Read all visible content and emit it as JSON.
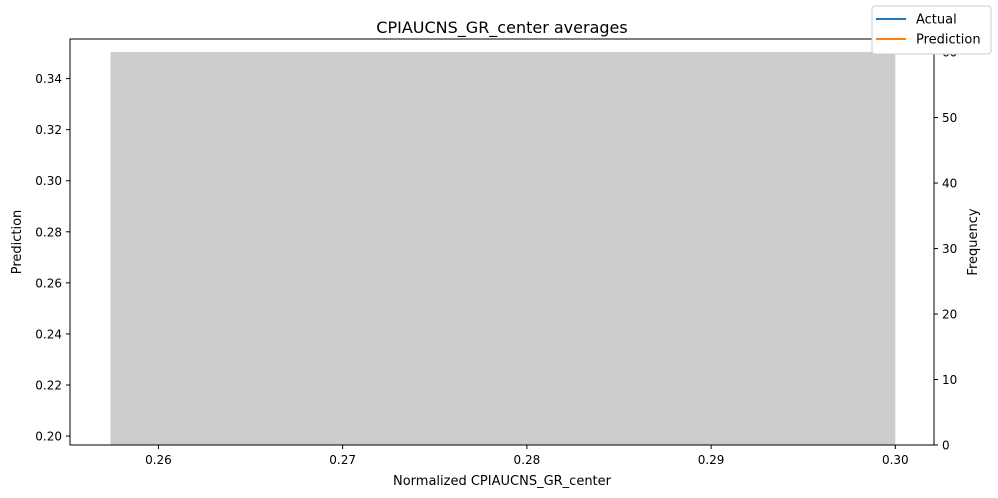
{
  "chart_data": {
    "type": "bar",
    "title": "CPIAUCNS_GR_center averages",
    "xlabel": "Normalized CPIAUCNS_GR_center",
    "ylabel_left": "Prediction",
    "ylabel_right": "Frequency",
    "xlim": [
      0.2552,
      0.3021
    ],
    "ylim_left": [
      0.1965,
      0.3555
    ],
    "ylim_right": [
      0,
      62
    ],
    "x_ticks": [
      "0.26",
      "0.27",
      "0.28",
      "0.29",
      "0.30"
    ],
    "x_tick_values": [
      0.26,
      0.27,
      0.28,
      0.29,
      0.3
    ],
    "y_left_ticks": [
      "0.20",
      "0.22",
      "0.24",
      "0.26",
      "0.28",
      "0.30",
      "0.32",
      "0.34"
    ],
    "y_left_tick_values": [
      0.2,
      0.22,
      0.24,
      0.26,
      0.28,
      0.3,
      0.32,
      0.34
    ],
    "y_right_ticks": [
      "0",
      "10",
      "20",
      "30",
      "40",
      "50",
      "60"
    ],
    "y_right_tick_values": [
      0,
      10,
      20,
      30,
      40,
      50,
      60
    ],
    "histogram": {
      "bin_start": 0.2574,
      "bin_end": 0.3,
      "frequency": 60,
      "color": "#cccccc"
    },
    "series": [
      {
        "name": "Actual",
        "color": "#1f77b4"
      },
      {
        "name": "Prediction",
        "color": "#ff7f0e"
      }
    ],
    "legend_placement": "top-right",
    "grid": false
  }
}
